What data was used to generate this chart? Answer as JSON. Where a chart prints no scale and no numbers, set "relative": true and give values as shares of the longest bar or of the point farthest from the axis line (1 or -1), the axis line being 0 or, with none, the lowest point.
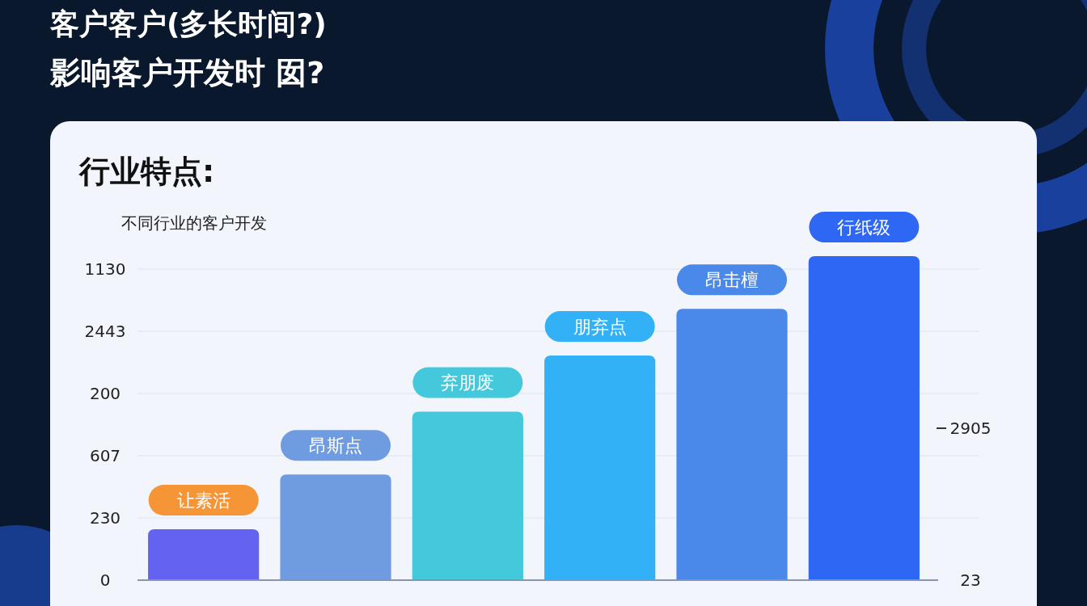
{
  "chart_data": {
    "type": "bar",
    "title": "客户客户(多长时间?)",
    "subtitle": "影响客户开发时 囡?",
    "ylabel": "不同行业的客户开发",
    "annotations": [
      "行业特点:",
      "让素活",
      "昂斯点",
      "弃朋废",
      "朋弃点",
      "昂击檀",
      "行纸级",
      "0",
      "230",
      "607",
      "200",
      "2443",
      "1130",
      "23",
      "2905"
    ],
    "categories": [
      null,
      null,
      null,
      null,
      null,
      null
    ],
    "values": [
      0.157,
      0.326,
      0.52,
      0.693,
      0.837,
      1
    ],
    "colors": [
      "#6462f0",
      "#6f9be0",
      "#44c8dc",
      "#33b1f7",
      "#4a88ea",
      "#2f67f5"
    ],
    "relative": true,
    "grid": "y"
  }
}
